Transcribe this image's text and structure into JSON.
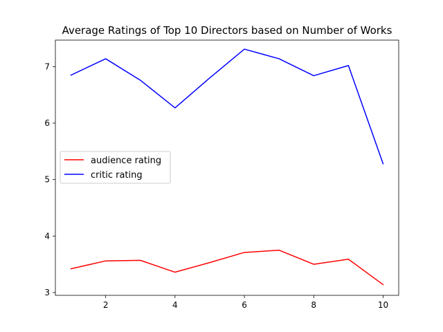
{
  "chart_data": {
    "type": "line",
    "title": "Average Ratings of Top 10 Directors based on Number of Works",
    "xlabel": "",
    "ylabel": "",
    "x": [
      1,
      2,
      3,
      4,
      5,
      6,
      7,
      8,
      9,
      10
    ],
    "xlim": [
      0.55,
      10.45
    ],
    "ylim": [
      2.95,
      7.47
    ],
    "x_ticks": [
      2,
      4,
      6,
      8,
      10
    ],
    "y_ticks": [
      3,
      4,
      5,
      6,
      7
    ],
    "x_tick_labels": [
      "2",
      "4",
      "6",
      "8",
      "10"
    ],
    "y_tick_labels": [
      "3",
      "4",
      "5",
      "6",
      "7"
    ],
    "grid": false,
    "legend_position": "center-left",
    "series": [
      {
        "name": "audience rating",
        "color": "#ff0000",
        "values": [
          3.42,
          3.56,
          3.57,
          3.36,
          3.53,
          3.71,
          3.75,
          3.5,
          3.59,
          3.14
        ]
      },
      {
        "name": "critic rating",
        "color": "#0000ff",
        "values": [
          6.85,
          7.14,
          6.76,
          6.27,
          6.8,
          7.31,
          7.14,
          6.84,
          7.02,
          5.28
        ]
      }
    ]
  }
}
